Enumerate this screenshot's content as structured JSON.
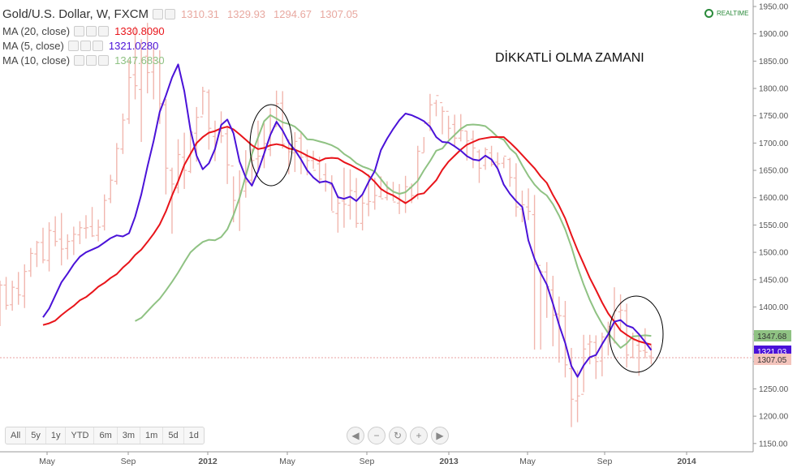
{
  "header": {
    "title": "Gold/U.S. Dollar, W, FXCM",
    "ohlc": [
      "1310.31",
      "1329.93",
      "1294.67",
      "1307.05"
    ]
  },
  "indicators": [
    {
      "label": "MA (20, close)",
      "value": "1330.8090",
      "color": "#e8141a"
    },
    {
      "label": "MA (5, close)",
      "value": "1321.0280",
      "color": "#4a12d8"
    },
    {
      "label": "MA (10, close)",
      "value": "1347.6830",
      "color": "#8fc283"
    }
  ],
  "annotation": "DİKKATLİ OLMA ZAMANI",
  "realtime_label": "REALTIME",
  "range_buttons": [
    "All",
    "5y",
    "1y",
    "YTD",
    "6m",
    "3m",
    "1m",
    "5d",
    "1d"
  ],
  "nav_icons": [
    "chevron-left-icon",
    "minus-icon",
    "reset-icon",
    "plus-icon",
    "chevron-right-icon"
  ],
  "price_labels": [
    {
      "text": "1347.68",
      "value": 1347.68,
      "color": "#8fc283"
    },
    {
      "text": "1321.03",
      "value": 1321.03,
      "color": "#4a12d8"
    },
    {
      "text": "1307.05",
      "value": 1307.05,
      "color": "#f4c4bc"
    }
  ],
  "chart_data": {
    "type": "line",
    "x_ticks": [
      "May",
      "Sep",
      "2012",
      "May",
      "Sep",
      "2013",
      "May",
      "Sep",
      "2014"
    ],
    "y_ticks": [
      1150,
      1200,
      1250,
      1300,
      1350,
      1400,
      1450,
      1500,
      1550,
      1600,
      1650,
      1700,
      1750,
      1800,
      1850,
      1900,
      1950
    ],
    "ylim": [
      1140,
      1960
    ],
    "grid": false,
    "current_price": 1307.05,
    "weeks": 110,
    "bars": [
      [
        1391,
        1448,
        1365,
        1440
      ],
      [
        1440,
        1455,
        1395,
        1403
      ],
      [
        1404,
        1448,
        1393,
        1436
      ],
      [
        1434,
        1464,
        1404,
        1422
      ],
      [
        1420,
        1478,
        1398,
        1465
      ],
      [
        1466,
        1508,
        1455,
        1498
      ],
      [
        1497,
        1521,
        1473,
        1518
      ],
      [
        1518,
        1545,
        1480,
        1486
      ],
      [
        1485,
        1555,
        1465,
        1540
      ],
      [
        1538,
        1566,
        1511,
        1520
      ],
      [
        1524,
        1572,
        1476,
        1506
      ],
      [
        1507,
        1533,
        1487,
        1520
      ],
      [
        1521,
        1547,
        1495,
        1533
      ],
      [
        1532,
        1557,
        1515,
        1545
      ],
      [
        1544,
        1568,
        1525,
        1545
      ],
      [
        1547,
        1583,
        1528,
        1530
      ],
      [
        1531,
        1560,
        1520,
        1546
      ],
      [
        1548,
        1606,
        1540,
        1595
      ],
      [
        1598,
        1642,
        1590,
        1632
      ],
      [
        1630,
        1700,
        1624,
        1690
      ],
      [
        1689,
        1754,
        1680,
        1742
      ],
      [
        1744,
        1852,
        1735,
        1820
      ],
      [
        1825,
        1914,
        1780,
        1805
      ],
      [
        1798,
        1890,
        1702,
        1852
      ],
      [
        1859,
        1920,
        1791,
        1829
      ],
      [
        1830,
        1882,
        1780,
        1852
      ],
      [
        1848,
        1870,
        1735,
        1772
      ],
      [
        1770,
        1781,
        1606,
        1654
      ],
      [
        1650,
        1655,
        1534,
        1625
      ],
      [
        1618,
        1707,
        1608,
        1679
      ],
      [
        1674,
        1719,
        1616,
        1650
      ],
      [
        1648,
        1721,
        1645,
        1720
      ],
      [
        1718,
        1766,
        1666,
        1747
      ],
      [
        1748,
        1803,
        1752,
        1795
      ],
      [
        1793,
        1798,
        1688,
        1727
      ],
      [
        1712,
        1741,
        1667,
        1724
      ],
      [
        1722,
        1758,
        1700,
        1713
      ],
      [
        1717,
        1730,
        1625,
        1660
      ],
      [
        1658,
        1639,
        1555,
        1595
      ],
      [
        1591,
        1650,
        1539,
        1613
      ],
      [
        1612,
        1687,
        1600,
        1629
      ],
      [
        1632,
        1690,
        1626,
        1668
      ],
      [
        1671,
        1741,
        1650,
        1676
      ],
      [
        1676,
        1736,
        1654,
        1699
      ],
      [
        1688,
        1764,
        1676,
        1720
      ],
      [
        1730,
        1796,
        1730,
        1772
      ],
      [
        1773,
        1795,
        1690,
        1698
      ],
      [
        1691,
        1707,
        1643,
        1684
      ],
      [
        1682,
        1720,
        1647,
        1703
      ],
      [
        1709,
        1721,
        1643,
        1674
      ],
      [
        1675,
        1688,
        1641,
        1668
      ],
      [
        1668,
        1686,
        1653,
        1650
      ],
      [
        1662,
        1675,
        1625,
        1634
      ],
      [
        1642,
        1663,
        1611,
        1629
      ],
      [
        1624,
        1641,
        1576,
        1574
      ],
      [
        1571,
        1605,
        1536,
        1590
      ],
      [
        1594,
        1655,
        1545,
        1588
      ],
      [
        1586,
        1652,
        1560,
        1613
      ],
      [
        1611,
        1636,
        1545,
        1553
      ],
      [
        1553,
        1606,
        1540,
        1590
      ],
      [
        1588,
        1643,
        1566,
        1593
      ],
      [
        1592,
        1636,
        1578,
        1604
      ],
      [
        1602,
        1639,
        1600,
        1598
      ],
      [
        1600,
        1630,
        1595,
        1616
      ],
      [
        1606,
        1629,
        1594,
        1592
      ],
      [
        1590,
        1625,
        1570,
        1594
      ],
      [
        1593,
        1640,
        1572,
        1620
      ],
      [
        1619,
        1626,
        1590,
        1604
      ],
      [
        1604,
        1695,
        1597,
        1685
      ],
      [
        1682,
        1711,
        1683,
        1736
      ],
      [
        1737,
        1790,
        1722,
        1770
      ],
      [
        1773,
        1779,
        1749,
        1787
      ],
      [
        1774,
        1767,
        1716,
        1758
      ],
      [
        1758,
        1750,
        1707,
        1727
      ],
      [
        1734,
        1752,
        1693,
        1709
      ],
      [
        1709,
        1753,
        1703,
        1723
      ],
      [
        1722,
        1722,
        1668,
        1704
      ],
      [
        1707,
        1723,
        1654,
        1691
      ],
      [
        1684,
        1688,
        1627,
        1654
      ],
      [
        1659,
        1692,
        1651,
        1688
      ],
      [
        1682,
        1695,
        1657,
        1661
      ],
      [
        1665,
        1683,
        1655,
        1662
      ],
      [
        1663,
        1674,
        1654,
        1676
      ],
      [
        1670,
        1673,
        1620,
        1637
      ],
      [
        1636,
        1663,
        1565,
        1583
      ],
      [
        1579,
        1613,
        1555,
        1587
      ],
      [
        1583,
        1617,
        1559,
        1575
      ],
      [
        1569,
        1605,
        1322,
        1478
      ],
      [
        1476,
        1467,
        1322,
        1464
      ],
      [
        1464,
        1482,
        1380,
        1437
      ],
      [
        1431,
        1457,
        1328,
        1385
      ],
      [
        1387,
        1419,
        1298,
        1384
      ],
      [
        1383,
        1411,
        1271,
        1294
      ],
      [
        1287,
        1325,
        1180,
        1231
      ],
      [
        1228,
        1284,
        1189,
        1237
      ],
      [
        1240,
        1349,
        1244,
        1323
      ],
      [
        1332,
        1349,
        1295,
        1336
      ],
      [
        1335,
        1348,
        1268,
        1300
      ],
      [
        1301,
        1353,
        1273,
        1345
      ],
      [
        1345,
        1373,
        1311,
        1364
      ],
      [
        1368,
        1436,
        1333,
        1393
      ],
      [
        1391,
        1423,
        1355,
        1394
      ],
      [
        1393,
        1406,
        1289,
        1312
      ],
      [
        1308,
        1353,
        1306,
        1339
      ],
      [
        1330,
        1352,
        1274,
        1319
      ],
      [
        1320,
        1361,
        1306,
        1317
      ],
      [
        1310,
        1330,
        1295,
        1307
      ]
    ],
    "series": [
      {
        "name": "MA (20, close)",
        "color": "#e8141a",
        "values": [
          1367,
          1370,
          1375,
          1385,
          1394,
          1402,
          1412,
          1418,
          1427,
          1437,
          1444,
          1453,
          1460,
          1472,
          1482,
          1495,
          1505,
          1519,
          1534,
          1551,
          1575,
          1604,
          1630,
          1660,
          1680,
          1700,
          1711,
          1719,
          1722,
          1727,
          1730,
          1725,
          1716,
          1706,
          1696,
          1689,
          1691,
          1696,
          1698,
          1696,
          1690,
          1688,
          1683,
          1677,
          1672,
          1667,
          1672,
          1673,
          1672,
          1665,
          1660,
          1654,
          1648,
          1640,
          1629,
          1616,
          1609,
          1604,
          1597,
          1590,
          1597,
          1606,
          1608,
          1620,
          1632,
          1651,
          1666,
          1677,
          1688,
          1697,
          1702,
          1707,
          1709,
          1711,
          1711,
          1711,
          1701,
          1690,
          1678,
          1666,
          1654,
          1639,
          1627,
          1605,
          1585,
          1562,
          1532,
          1504,
          1479,
          1453,
          1431,
          1408,
          1388,
          1373,
          1357,
          1349,
          1342,
          1337,
          1334,
          1331
        ]
      },
      {
        "name": "MA (5, close)",
        "color": "#4a12d8",
        "values": [
          1381,
          1397,
          1421,
          1445,
          1461,
          1478,
          1492,
          1500,
          1505,
          1510,
          1518,
          1526,
          1531,
          1529,
          1535,
          1565,
          1606,
          1657,
          1704,
          1757,
          1787,
          1820,
          1844,
          1795,
          1724,
          1677,
          1652,
          1663,
          1689,
          1733,
          1743,
          1718,
          1666,
          1637,
          1622,
          1648,
          1681,
          1715,
          1739,
          1723,
          1701,
          1687,
          1670,
          1650,
          1637,
          1628,
          1630,
          1626,
          1601,
          1598,
          1602,
          1594,
          1606,
          1629,
          1649,
          1687,
          1708,
          1726,
          1742,
          1754,
          1751,
          1746,
          1740,
          1730,
          1711,
          1702,
          1701,
          1694,
          1686,
          1676,
          1670,
          1668,
          1677,
          1670,
          1653,
          1624,
          1607,
          1594,
          1583,
          1522,
          1488,
          1462,
          1441,
          1406,
          1367,
          1334,
          1292,
          1272,
          1293,
          1308,
          1312,
          1332,
          1350,
          1373,
          1376,
          1366,
          1362,
          1350,
          1336,
          1321
        ]
      },
      {
        "name": "MA (10, close)",
        "color": "#8fc283",
        "values": [
          1374,
          1380,
          1392,
          1404,
          1415,
          1430,
          1446,
          1463,
          1482,
          1500,
          1510,
          1519,
          1523,
          1522,
          1528,
          1542,
          1568,
          1600,
          1640,
          1680,
          1710,
          1740,
          1751,
          1745,
          1738,
          1735,
          1730,
          1720,
          1707,
          1706,
          1703,
          1700,
          1696,
          1690,
          1680,
          1673,
          1663,
          1657,
          1653,
          1648,
          1634,
          1620,
          1611,
          1607,
          1610,
          1620,
          1631,
          1650,
          1667,
          1686,
          1690,
          1704,
          1715,
          1726,
          1733,
          1734,
          1733,
          1731,
          1722,
          1711,
          1706,
          1690,
          1680,
          1659,
          1640,
          1624,
          1612,
          1604,
          1588,
          1567,
          1542,
          1510,
          1473,
          1441,
          1413,
          1389,
          1369,
          1352,
          1338,
          1325,
          1333,
          1346,
          1347,
          1348,
          1347
        ]
      }
    ]
  }
}
